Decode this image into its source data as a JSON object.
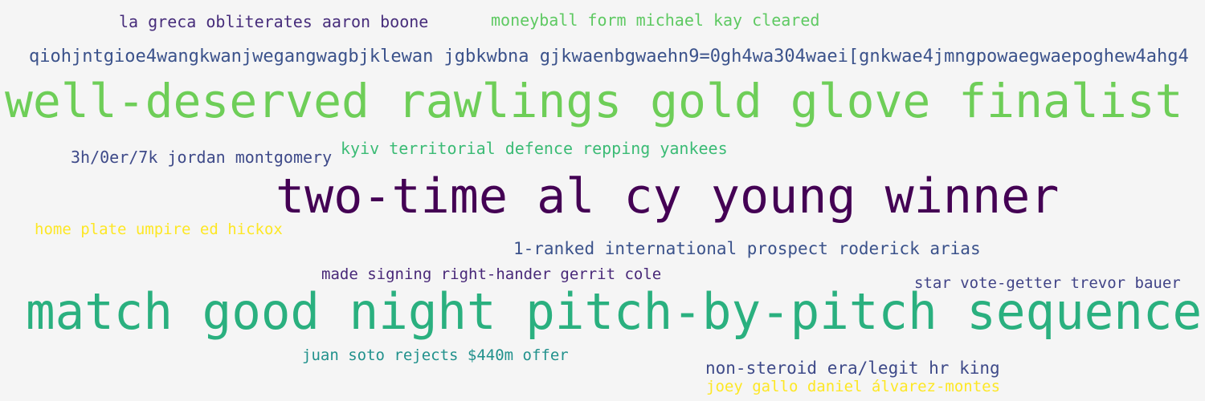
{
  "words": [
    {
      "text": "la greca obliterates aaron boone",
      "color": "#472d7b"
    },
    {
      "text": "moneyball form michael kay cleared",
      "color": "#5ec962"
    },
    {
      "text": "qiohjntgioe4wangkwanjwegangwagbjklewan jgbkwbna gjkwaenbgwaehn9=0gh4wa304waei[gnkwae4jmngpowaegwaepoghew4ahg4",
      "color": "#3b528b"
    },
    {
      "text": "well-deserved rawlings gold glove finalist",
      "color": "#6ece58"
    },
    {
      "text": "3h/0er/7k jordan montgomery",
      "color": "#3e4a89"
    },
    {
      "text": "kyiv territorial defence repping yankees",
      "color": "#3bbb75"
    },
    {
      "text": "two-time al cy young winner",
      "color": "#440154"
    },
    {
      "text": "home plate umpire ed hickox",
      "color": "#fde725"
    },
    {
      "text": "1-ranked international prospect roderick arias",
      "color": "#3b528b"
    },
    {
      "text": "made signing right-hander gerrit cole",
      "color": "#482878"
    },
    {
      "text": "star vote-getter trevor bauer",
      "color": "#414487"
    },
    {
      "text": "match good night pitch-by-pitch sequence",
      "color": "#2ab07f"
    },
    {
      "text": "juan soto rejects $440m offer",
      "color": "#21918c"
    },
    {
      "text": "non-steroid era/legit hr king",
      "color": "#3e4a89"
    },
    {
      "text": "joey gallo daniel álvarez-montes",
      "color": "#fde725"
    }
  ],
  "background_color": "#f5f5f5"
}
